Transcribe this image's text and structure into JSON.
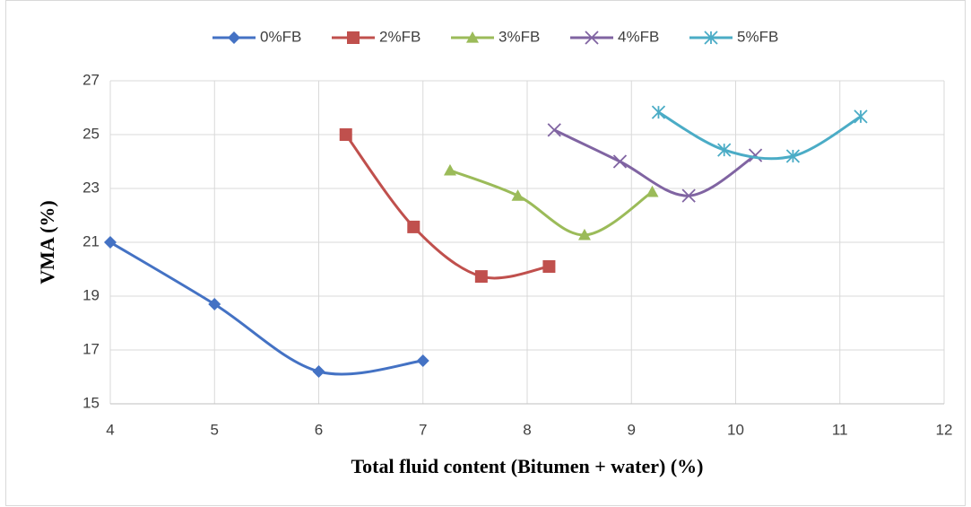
{
  "chart_data": {
    "type": "scatter-smooth",
    "xlabel": "Total fluid content (Bitumen + water) (%)",
    "ylabel": "VMA (%)",
    "xlim": [
      4,
      12
    ],
    "xticks": [
      4,
      5,
      6,
      7,
      8,
      9,
      10,
      11,
      12
    ],
    "ylim": [
      15,
      27
    ],
    "yticks": [
      15,
      17,
      19,
      21,
      23,
      25,
      27
    ],
    "grid": true,
    "legend": "top",
    "series": [
      {
        "name": "0%FB",
        "color": "#4472c4",
        "marker": "diamond",
        "x": [
          4,
          5,
          6,
          7
        ],
        "values": [
          21.0,
          18.7,
          16.2,
          16.6
        ]
      },
      {
        "name": "2%FB",
        "color": "#c0504d",
        "marker": "square",
        "x": [
          6.26,
          6.91,
          7.56,
          8.21
        ],
        "values": [
          25.0,
          21.57,
          19.73,
          20.1
        ]
      },
      {
        "name": "3%FB",
        "color": "#9bbb59",
        "marker": "triangle",
        "x": [
          7.26,
          7.91,
          8.55,
          9.2
        ],
        "values": [
          23.67,
          22.73,
          21.27,
          22.87
        ]
      },
      {
        "name": "4%FB",
        "color": "#8064a2",
        "marker": "x",
        "x": [
          8.26,
          8.89,
          9.55,
          10.19
        ],
        "values": [
          25.17,
          24.0,
          22.73,
          24.23
        ]
      },
      {
        "name": "5%FB",
        "color": "#4bacc6",
        "marker": "star",
        "x": [
          9.26,
          9.89,
          10.55,
          11.2
        ],
        "values": [
          25.83,
          24.43,
          24.2,
          25.67
        ]
      }
    ]
  }
}
